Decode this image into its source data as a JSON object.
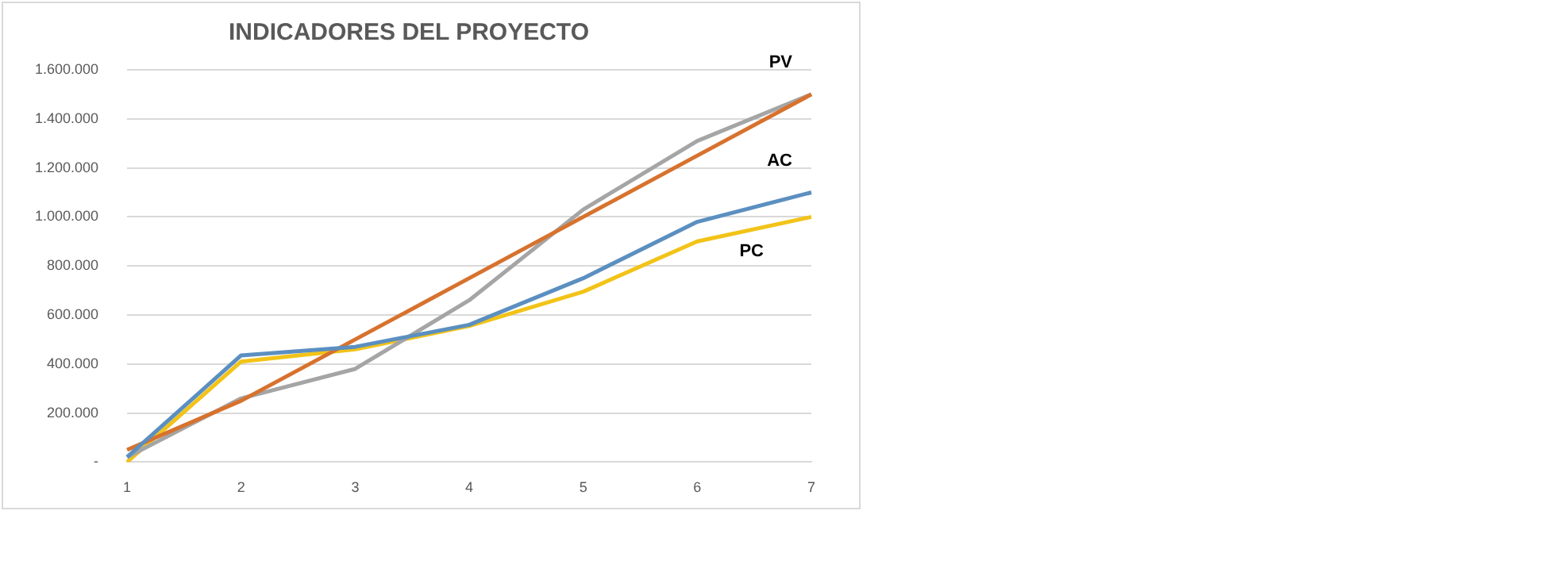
{
  "chart_data": {
    "type": "line",
    "title": "INDICADORES DEL PROYECTO",
    "categories": [
      "1",
      "2",
      "3",
      "4",
      "5",
      "6",
      "7"
    ],
    "series": [
      {
        "name": "AC",
        "color": "#5b8fc0",
        "values": [
          20000,
          435000,
          470000,
          560000,
          750000,
          980000,
          1100000
        ]
      },
      {
        "name": "PV",
        "color": "#d7722e",
        "values": [
          50000,
          250000,
          500000,
          750000,
          1000000,
          1250000,
          1500000
        ]
      },
      {
        "color": "#a5a5a5",
        "values": [
          20000,
          260000,
          380000,
          660000,
          1030000,
          1310000,
          1500000
        ]
      },
      {
        "name": "PC",
        "color": "#f2c318",
        "values": [
          0,
          410000,
          460000,
          555000,
          695000,
          900000,
          1000000
        ]
      }
    ],
    "ylim": [
      0,
      1600000
    ],
    "yticks": [
      {
        "value": 0,
        "label": "-"
      },
      {
        "value": 200000,
        "label": "200.000"
      },
      {
        "value": 400000,
        "label": "400.000"
      },
      {
        "value": 600000,
        "label": "600.000"
      },
      {
        "value": 800000,
        "label": "800.000"
      },
      {
        "value": 1000000,
        "label": "1.000.000"
      },
      {
        "value": 1200000,
        "label": "1.200.000"
      },
      {
        "value": 1400000,
        "label": "1.400.000"
      },
      {
        "value": 1600000,
        "label": "1.600.000"
      }
    ],
    "grid": "y",
    "legend": false,
    "marker": "none",
    "line_style": "solid"
  }
}
